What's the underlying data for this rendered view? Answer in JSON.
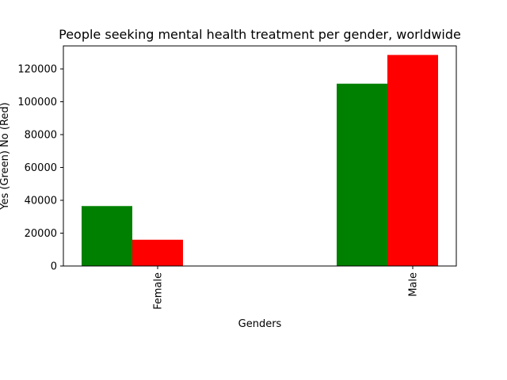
{
  "chart_data": {
    "type": "bar",
    "title": "People seeking mental health treatment per gender, worldwide",
    "xlabel": "Genders",
    "ylabel": "Yes (Green) No (Red)",
    "categories": [
      "Female",
      "Male"
    ],
    "series": [
      {
        "values": [
          36500,
          111000
        ],
        "color": "#008000"
      },
      {
        "values": [
          16000,
          128500
        ],
        "color": "#ff0000"
      }
    ],
    "ylim": [
      0,
      134000
    ],
    "yticks": [
      0,
      20000,
      40000,
      60000,
      80000,
      100000,
      120000
    ],
    "ytick_labels": [
      "0",
      "20000",
      "40000",
      "60000",
      "80000",
      "100000",
      "120000"
    ],
    "grid": false,
    "legend": "none"
  }
}
